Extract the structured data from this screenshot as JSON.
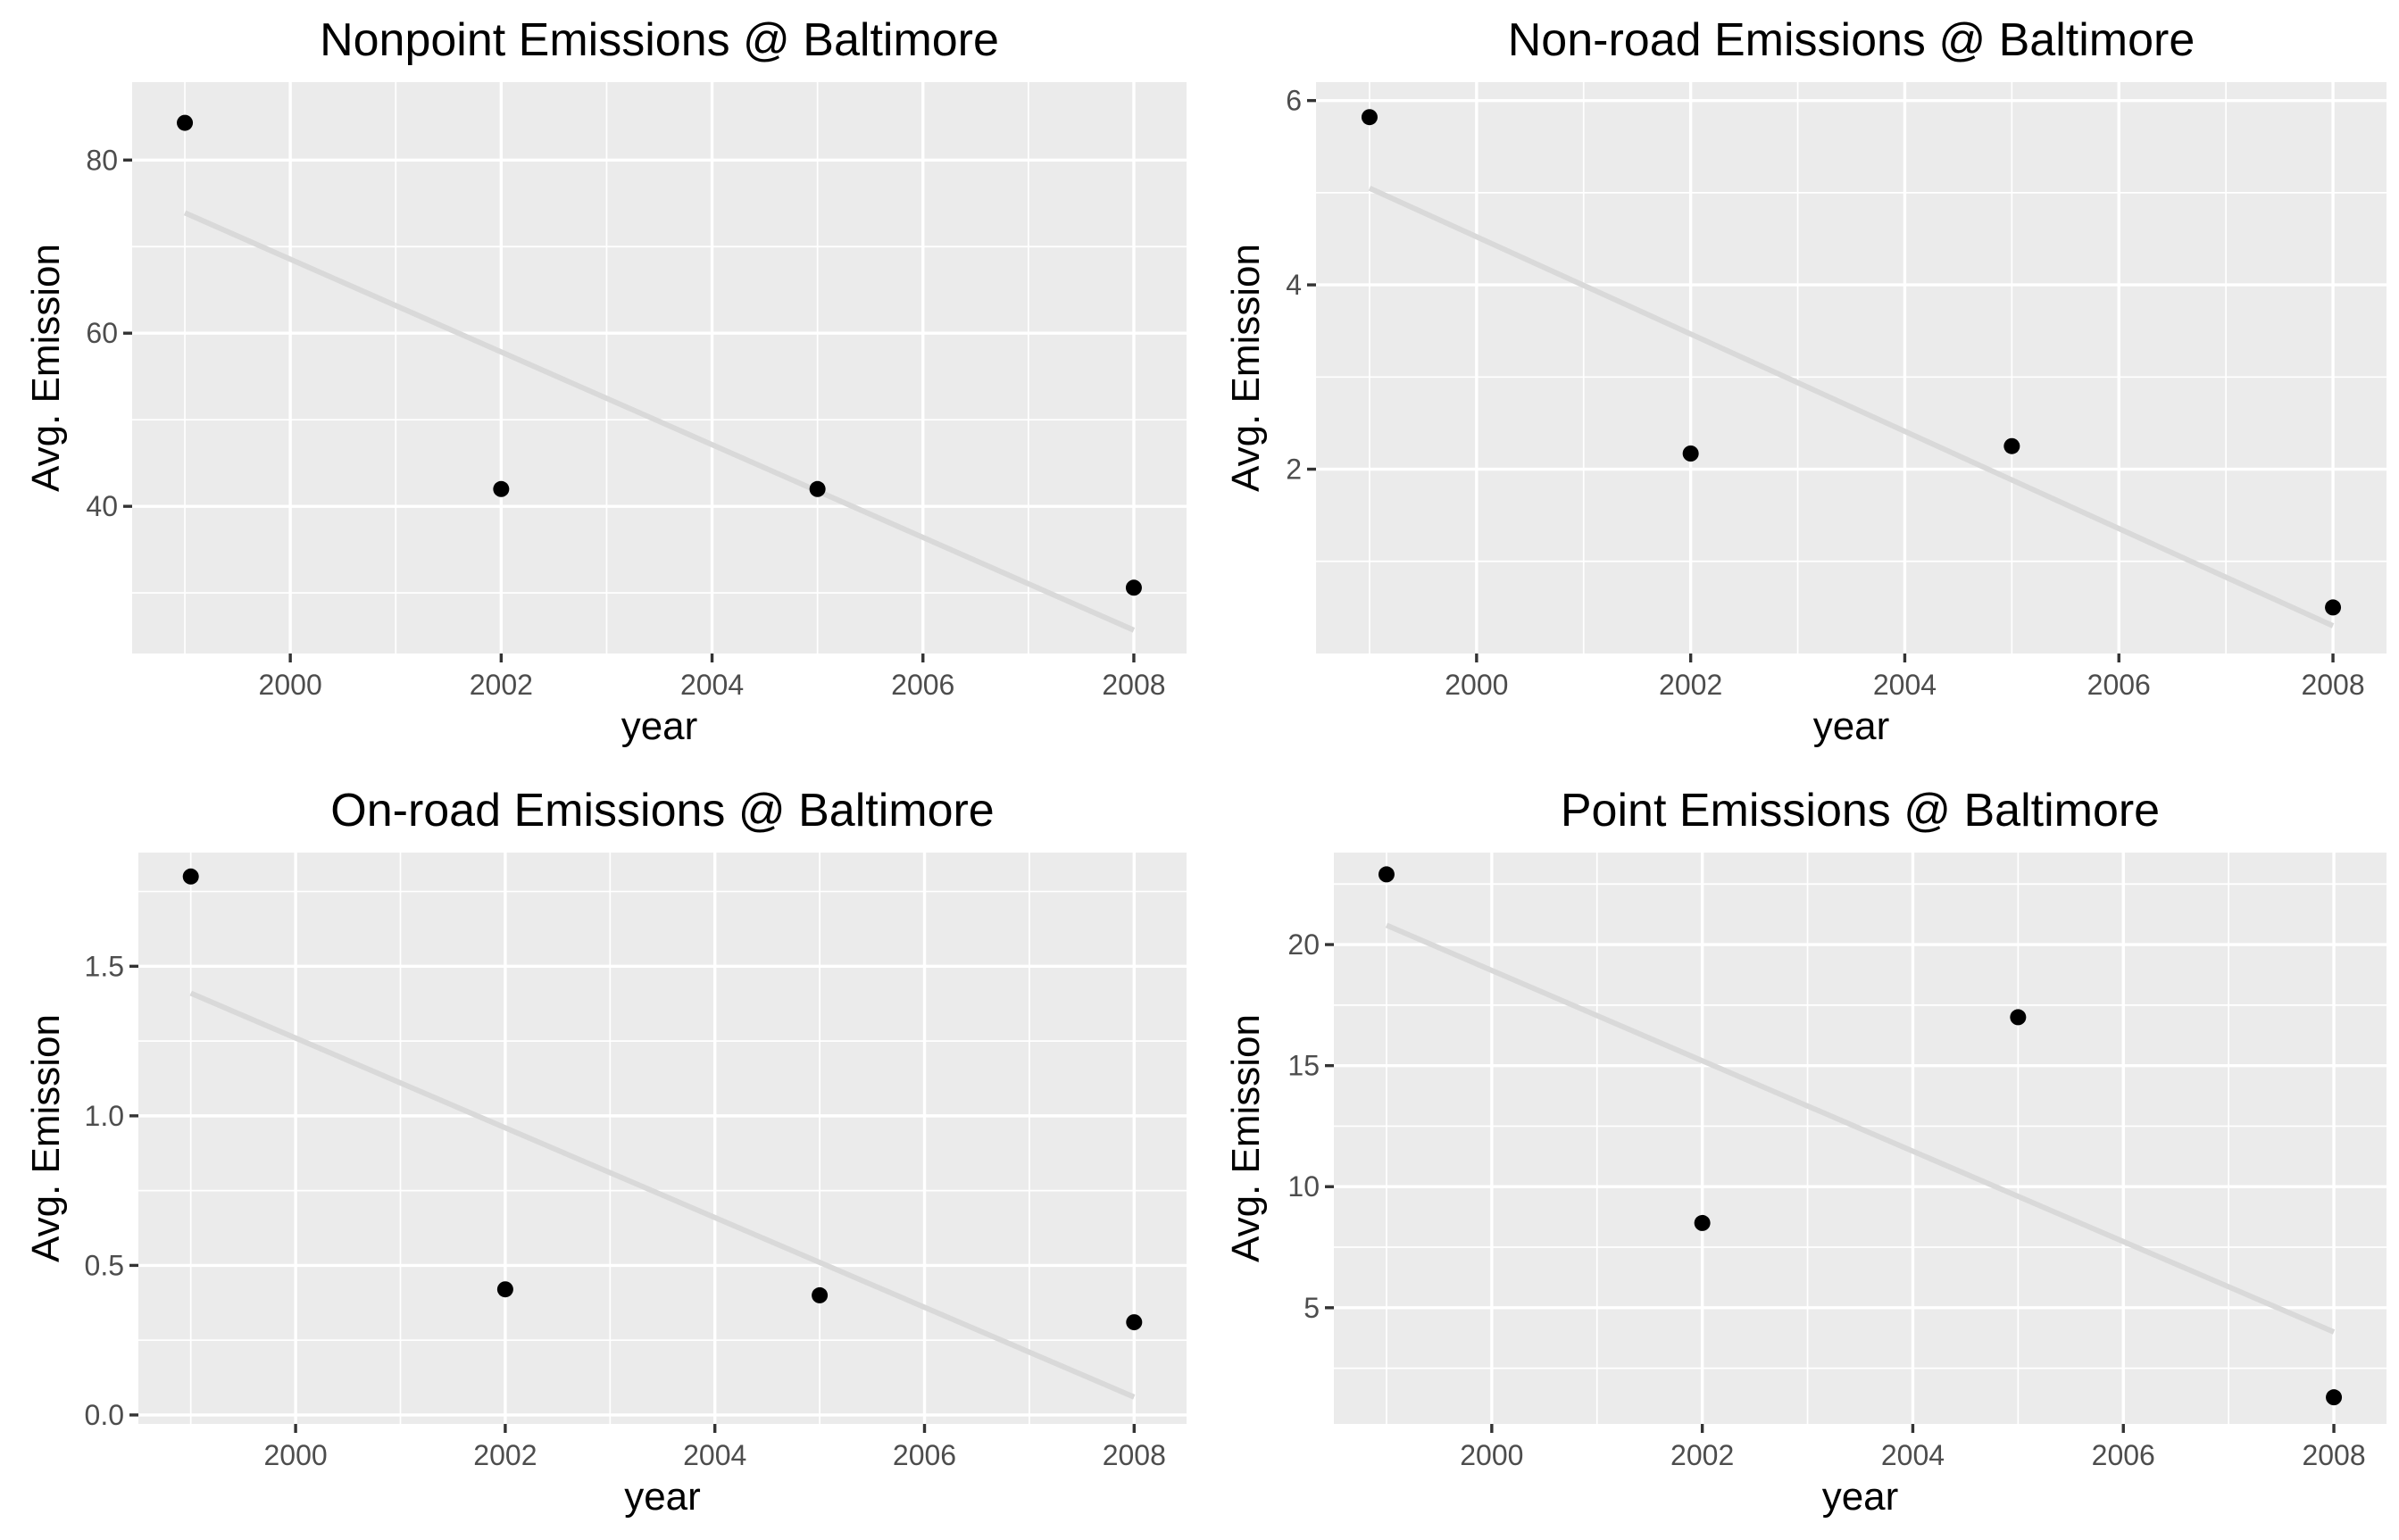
{
  "chart_data": [
    {
      "type": "scatter",
      "title": "Nonpoint Emissions @ Baltimore",
      "xlabel": "year",
      "ylabel": "Avg. Emission",
      "x": [
        1999,
        2002,
        2005,
        2008
      ],
      "y": [
        84.3,
        42.0,
        42.0,
        30.6
      ],
      "trend": [
        [
          1999,
          73.9
        ],
        [
          2008,
          25.7
        ]
      ],
      "xlim": [
        1998.5,
        2008.5
      ],
      "ylim": [
        23.0,
        89.0
      ],
      "xticks": [
        2000,
        2002,
        2004,
        2006,
        2008
      ],
      "xtick_labels": [
        "2000",
        "2002",
        "2004",
        "2006",
        "2008"
      ],
      "yticks": [
        40,
        60,
        80
      ],
      "ytick_labels": [
        "40",
        "60",
        "80"
      ],
      "grid": true,
      "colors": {
        "points": "#000000",
        "trend": "#d9d9d9",
        "panel": "#ebebeb",
        "grid": "#ffffff"
      }
    },
    {
      "type": "scatter",
      "title": "Non-road Emissions @ Baltimore",
      "xlabel": "year",
      "ylabel": "Avg. Emission",
      "x": [
        1999,
        2002,
        2005,
        2008
      ],
      "y": [
        5.82,
        2.17,
        2.25,
        0.5
      ],
      "trend": [
        [
          1999,
          5.05
        ],
        [
          2008,
          0.3
        ]
      ],
      "xlim": [
        1998.5,
        2008.5
      ],
      "ylim": [
        0.0,
        6.2
      ],
      "xticks": [
        2000,
        2002,
        2004,
        2006,
        2008
      ],
      "xtick_labels": [
        "2000",
        "2002",
        "2004",
        "2006",
        "2008"
      ],
      "yticks": [
        2,
        4,
        6
      ],
      "ytick_labels": [
        "2",
        "4",
        "6"
      ],
      "grid": true,
      "colors": {
        "points": "#000000",
        "trend": "#d9d9d9",
        "panel": "#ebebeb",
        "grid": "#ffffff"
      }
    },
    {
      "type": "scatter",
      "title": "On-road Emissions @ Baltimore",
      "xlabel": "year",
      "ylabel": "Avg. Emission",
      "x": [
        1999,
        2002,
        2005,
        2008
      ],
      "y": [
        1.8,
        0.42,
        0.4,
        0.31
      ],
      "trend": [
        [
          1999,
          1.41
        ],
        [
          2008,
          0.06
        ]
      ],
      "xlim": [
        1998.5,
        2008.5
      ],
      "ylim": [
        -0.03,
        1.88
      ],
      "xticks": [
        2000,
        2002,
        2004,
        2006,
        2008
      ],
      "xtick_labels": [
        "2000",
        "2002",
        "2004",
        "2006",
        "2008"
      ],
      "yticks": [
        0.0,
        0.5,
        1.0,
        1.5
      ],
      "ytick_labels": [
        "0.0",
        "0.5",
        "1.0",
        "1.5"
      ],
      "grid": true,
      "colors": {
        "points": "#000000",
        "trend": "#d9d9d9",
        "panel": "#ebebeb",
        "grid": "#ffffff"
      }
    },
    {
      "type": "scatter",
      "title": "Point Emissions @ Baltimore",
      "xlabel": "year",
      "ylabel": "Avg. Emission",
      "x": [
        1999,
        2002,
        2005,
        2008
      ],
      "y": [
        22.9,
        8.5,
        17.0,
        1.3
      ],
      "trend": [
        [
          1999,
          20.8
        ],
        [
          2008,
          4.0
        ]
      ],
      "xlim": [
        1998.5,
        2008.5
      ],
      "ylim": [
        0.2,
        23.8
      ],
      "xticks": [
        2000,
        2002,
        2004,
        2006,
        2008
      ],
      "xtick_labels": [
        "2000",
        "2002",
        "2004",
        "2006",
        "2008"
      ],
      "yticks": [
        5,
        10,
        15,
        20
      ],
      "ytick_labels": [
        "5",
        "10",
        "15",
        "20"
      ],
      "grid": true,
      "colors": {
        "points": "#000000",
        "trend": "#d9d9d9",
        "panel": "#ebebeb",
        "grid": "#ffffff"
      }
    }
  ]
}
